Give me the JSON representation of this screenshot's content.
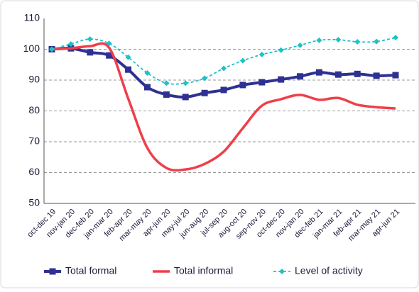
{
  "chart_data": {
    "type": "line",
    "categories": [
      "oct-dec 19",
      "nov-jan 20",
      "dec-feb 20",
      "jan-mar 20",
      "feb-apr 20",
      "mar-may 20",
      "apr-jun 20",
      "may-jul 20",
      "jun-aug 20",
      "jul-sep 20",
      "aug-oct 20",
      "sep-nov 20",
      "oct-dec 20",
      "nov-jan 20",
      "dec-feb 21",
      "jan-mar 21",
      "feb-apr 21",
      "mar-may 21",
      "apr-jun 21"
    ],
    "series": [
      {
        "name": "Total formal",
        "color": "#2e3192",
        "values": [
          100,
          100.3,
          99,
          98,
          93.4,
          87.7,
          85.3,
          84.5,
          85.8,
          86.8,
          88.4,
          89.3,
          90.2,
          91.2,
          92.5,
          91.8,
          92,
          91.4,
          91.6
        ]
      },
      {
        "name": "Total informal",
        "color": "#ef3e4a",
        "values": [
          100,
          100.3,
          101,
          100.5,
          84,
          68,
          61.5,
          61,
          62.8,
          66.8,
          74.4,
          81.7,
          83.8,
          85.2,
          83.6,
          84.2,
          82,
          81.2,
          80.8
        ]
      },
      {
        "name": "Level of activity",
        "color": "#1fc1c8",
        "values": [
          100,
          101.7,
          103.3,
          101.9,
          97.4,
          92.3,
          89,
          89,
          90.6,
          93.8,
          96.3,
          98.3,
          99.7,
          101.3,
          102.9,
          103.1,
          102.4,
          102.5,
          103.8
        ]
      }
    ],
    "ylim": [
      50,
      110
    ],
    "yticks": [
      50,
      60,
      70,
      80,
      90,
      100,
      110
    ],
    "grid": true,
    "legend": "bottom"
  }
}
